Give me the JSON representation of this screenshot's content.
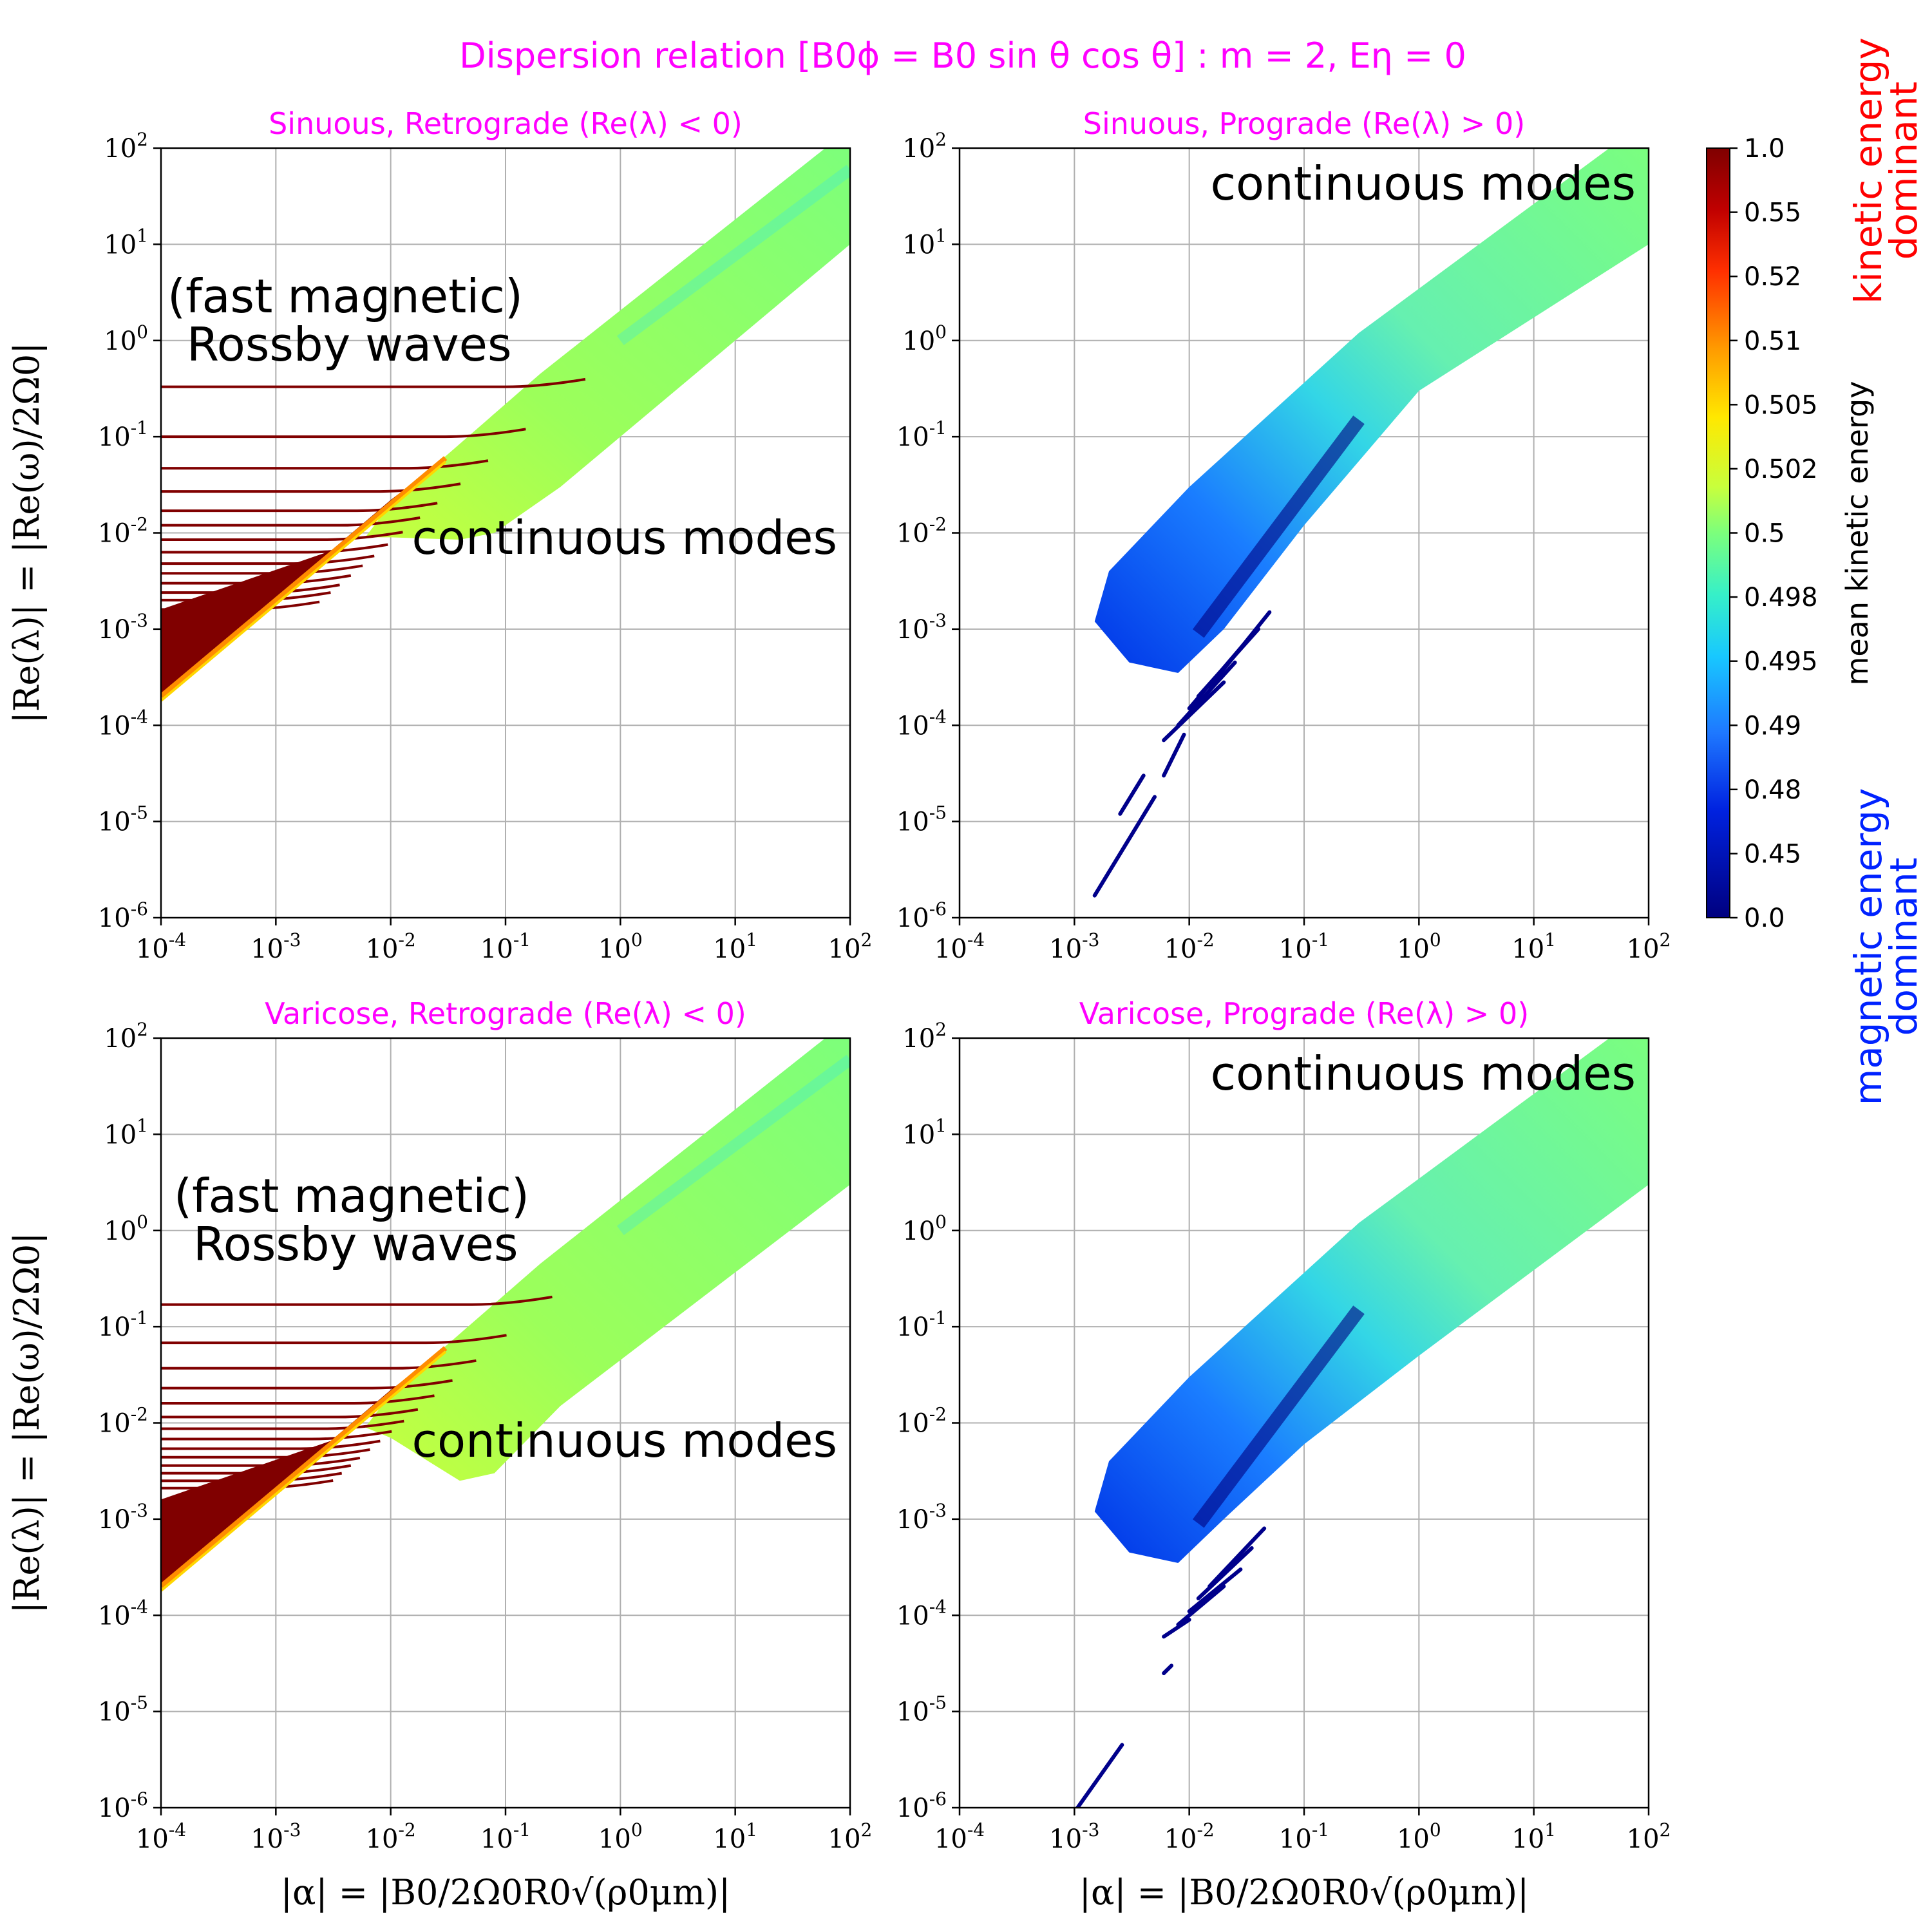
{
  "figure": {
    "title": "Dispersion relation [B0ϕ = B0 sin θ cos θ] : m = 2, Eη = 0",
    "colorbar": {
      "label": "mean kinetic energy",
      "top_label_line1": "kinetic energy",
      "top_label_line2": "dominant",
      "bottom_label_line1": "magnetic energy",
      "bottom_label_line2": "dominant",
      "tick_labels": [
        "1.0",
        "0.55",
        "0.52",
        "0.51",
        "0.505",
        "0.502",
        "0.5",
        "0.498",
        "0.495",
        "0.49",
        "0.48",
        "0.45",
        "0.0"
      ],
      "colors": [
        "#7f0000",
        "#e41a1c",
        "#ff8c00",
        "#ffd700",
        "#d4ff2a",
        "#80ff80",
        "#30e0d0",
        "#1e90ff",
        "#0040ff",
        "#00008b"
      ]
    },
    "colors": {
      "title": "#ff00ff",
      "rossby": "#800000",
      "continuum_green": "#7cff7c",
      "continuum_yellow": "#c8ff3c",
      "magnetic_blue": "#0000cd",
      "label_red": "#ff0000",
      "label_blue": "#0022ff"
    }
  },
  "chart_data": [
    {
      "type": "line",
      "title": "Sinuous, Retrograde (Re(λ) < 0)",
      "xlabel": "|α| = |B0/2Ω0R0√(ρ0μm)|",
      "ylabel": "|Re(λ)| = |Re(ω)/2Ω0|",
      "xscale": "log",
      "yscale": "log",
      "xlim": [
        0.0001,
        100
      ],
      "ylim": [
        1e-06,
        100
      ],
      "grid": true,
      "x_tick_labels": [
        "10^-4",
        "10^-3",
        "10^-2",
        "10^-1",
        "10^0",
        "10^1",
        "10^2"
      ],
      "y_tick_labels": [
        "10^-6",
        "10^-5",
        "10^-4",
        "10^-3",
        "10^-2",
        "10^-1",
        "10^0",
        "10^1",
        "10^2"
      ],
      "annotations": [
        "(fast magnetic)",
        "Rossby waves",
        "continuous modes"
      ],
      "rossby_branch_levels": [
        0.33,
        0.1,
        0.047,
        0.027,
        0.017,
        0.012,
        0.0085,
        0.0063,
        0.0048,
        0.0038,
        0.003,
        0.0024,
        0.002,
        0.0016
      ],
      "continuum_band": {
        "lower_at_x_0.01": 0.0012,
        "upper_at_x_0.01": 0.02,
        "upper_at_x_100": 100,
        "lower_at_x_100": 10
      }
    },
    {
      "type": "line",
      "title": "Sinuous, Prograde (Re(λ) > 0)",
      "xlabel": "|α| = |B0/2Ω0R0√(ρ0μm)|",
      "ylabel": "",
      "xscale": "log",
      "yscale": "log",
      "xlim": [
        0.0001,
        100
      ],
      "ylim": [
        1e-06,
        100
      ],
      "grid": true,
      "x_tick_labels": [
        "10^-4",
        "10^-3",
        "10^-2",
        "10^-1",
        "10^0",
        "10^1",
        "10^2"
      ],
      "y_tick_labels": [
        "10^-6",
        "10^-5",
        "10^-4",
        "10^-3",
        "10^-2",
        "10^-1",
        "10^0",
        "10^1",
        "10^2"
      ],
      "annotations": [
        "continuous modes"
      ],
      "magnetic_branches_x": [
        [
          0.0015,
          0.05
        ],
        [
          0.002,
          0.006
        ],
        [
          0.005,
          0.03
        ]
      ]
    },
    {
      "type": "line",
      "title": "Varicose, Retrograde (Re(λ) < 0)",
      "xlabel": "|α| = |B0/2Ω0R0√(ρ0μm)|",
      "ylabel": "|Re(λ)| = |Re(ω)/2Ω0|",
      "xscale": "log",
      "yscale": "log",
      "xlim": [
        0.0001,
        100
      ],
      "ylim": [
        1e-06,
        100
      ],
      "grid": true,
      "x_tick_labels": [
        "10^-4",
        "10^-3",
        "10^-2",
        "10^-1",
        "10^0",
        "10^1",
        "10^2"
      ],
      "y_tick_labels": [
        "10^-6",
        "10^-5",
        "10^-4",
        "10^-3",
        "10^-2",
        "10^-1",
        "10^0",
        "10^1",
        "10^2"
      ],
      "annotations": [
        "(fast magnetic)",
        "Rossby waves",
        "continuous modes"
      ],
      "rossby_branch_levels": [
        0.17,
        0.068,
        0.037,
        0.023,
        0.016,
        0.0115,
        0.0087,
        0.0068,
        0.0054,
        0.0044,
        0.0036,
        0.003,
        0.0025,
        0.0021
      ],
      "continuum_band": {
        "lower_at_x_0.01": 0.0012,
        "upper_at_x_0.01": 0.02,
        "upper_at_x_100": 100,
        "lower_at_x_100": 3
      }
    },
    {
      "type": "line",
      "title": "Varicose, Prograde (Re(λ) > 0)",
      "xlabel": "|α| = |B0/2Ω0R0√(ρ0μm)|",
      "ylabel": "",
      "xscale": "log",
      "yscale": "log",
      "xlim": [
        0.0001,
        100
      ],
      "ylim": [
        1e-06,
        100
      ],
      "grid": true,
      "x_tick_labels": [
        "10^-4",
        "10^-3",
        "10^-2",
        "10^-1",
        "10^0",
        "10^1",
        "10^2"
      ],
      "y_tick_labels": [
        "10^-6",
        "10^-5",
        "10^-4",
        "10^-3",
        "10^-2",
        "10^-1",
        "10^0",
        "10^1",
        "10^2"
      ],
      "annotations": [
        "continuous modes"
      ],
      "magnetic_branches_x": [
        [
          0.001,
          0.0025
        ],
        [
          0.006,
          0.03
        ]
      ]
    }
  ]
}
